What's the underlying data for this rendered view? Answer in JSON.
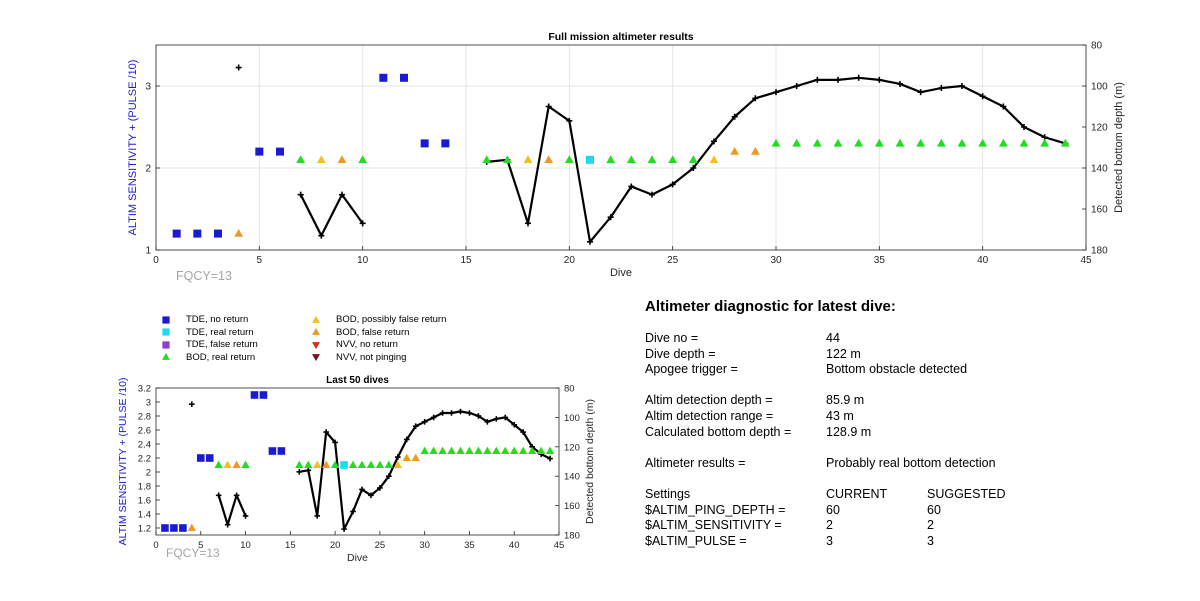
{
  "chart_data": [
    {
      "type": "scatter",
      "title": "Full mission altimeter results",
      "xlabel": "Dive",
      "ylabel": "ALTIM SENSITIVITY + (PULSE /10)",
      "y2label": "Detected bottom depth (m)",
      "annotation": "FQCY=13",
      "xlim": [
        0,
        45
      ],
      "ylim": [
        1,
        3.5
      ],
      "y2lim": [
        80,
        180
      ],
      "xticks": [
        "0",
        "5",
        "10",
        "15",
        "20",
        "25",
        "30",
        "35",
        "40",
        "45"
      ],
      "yticks": [
        "1",
        "2",
        "3"
      ],
      "y2ticks": [
        "80",
        "100",
        "120",
        "140",
        "160",
        "180"
      ],
      "grid": true,
      "depth_line_color": "#000000",
      "ylabel_color": "#1a1ad6"
    },
    {
      "type": "scatter",
      "title": "Last 50 dives",
      "xlabel": "Dive",
      "ylabel": "ALTIM SENSITIVITY + (PULSE /10)",
      "y2label": "Detected bottom depth (m)",
      "annotation": "FQCY=13",
      "xlim": [
        0,
        45
      ],
      "ylim": [
        1.1,
        3.2
      ],
      "y2lim": [
        80,
        180
      ],
      "xticks": [
        "0",
        "5",
        "10",
        "15",
        "20",
        "25",
        "30",
        "35",
        "40",
        "45"
      ],
      "yticks": [
        "1.2",
        "1.4",
        "1.6",
        "1.8",
        "2",
        "2.2",
        "2.4",
        "2.6",
        "2.8",
        "3",
        "3.2"
      ],
      "y2ticks": [
        "80",
        "100",
        "120",
        "140",
        "160",
        "180"
      ],
      "grid": false,
      "depth_line_color": "#000000",
      "ylabel_color": "#1a1ad6"
    }
  ],
  "markers": [
    {
      "dive": 1,
      "value": 1.2,
      "cat": "tde_none"
    },
    {
      "dive": 2,
      "value": 1.2,
      "cat": "tde_none"
    },
    {
      "dive": 3,
      "value": 1.2,
      "cat": "tde_none"
    },
    {
      "dive": 4,
      "value": 1.2,
      "cat": "bod_false"
    },
    {
      "dive": 5,
      "value": 2.2,
      "cat": "tde_none"
    },
    {
      "dive": 6,
      "value": 2.2,
      "cat": "tde_none"
    },
    {
      "dive": 7,
      "value": 2.1,
      "cat": "bod_real"
    },
    {
      "dive": 8,
      "value": 2.1,
      "cat": "bod_possibly"
    },
    {
      "dive": 9,
      "value": 2.1,
      "cat": "bod_false"
    },
    {
      "dive": 10,
      "value": 2.1,
      "cat": "bod_real"
    },
    {
      "dive": 11,
      "value": 3.1,
      "cat": "tde_none"
    },
    {
      "dive": 12,
      "value": 3.1,
      "cat": "tde_none"
    },
    {
      "dive": 13,
      "value": 2.3,
      "cat": "tde_none"
    },
    {
      "dive": 14,
      "value": 2.3,
      "cat": "tde_none"
    },
    {
      "dive": 16,
      "value": 2.1,
      "cat": "bod_real"
    },
    {
      "dive": 17,
      "value": 2.1,
      "cat": "bod_real"
    },
    {
      "dive": 18,
      "value": 2.1,
      "cat": "bod_possibly"
    },
    {
      "dive": 19,
      "value": 2.1,
      "cat": "bod_false"
    },
    {
      "dive": 20,
      "value": 2.1,
      "cat": "bod_real"
    },
    {
      "dive": 21,
      "value": 2.1,
      "cat": "tde_real"
    },
    {
      "dive": 22,
      "value": 2.1,
      "cat": "bod_real"
    },
    {
      "dive": 23,
      "value": 2.1,
      "cat": "bod_real"
    },
    {
      "dive": 24,
      "value": 2.1,
      "cat": "bod_real"
    },
    {
      "dive": 25,
      "value": 2.1,
      "cat": "bod_real"
    },
    {
      "dive": 26,
      "value": 2.1,
      "cat": "bod_real"
    },
    {
      "dive": 27,
      "value": 2.1,
      "cat": "bod_possibly"
    },
    {
      "dive": 28,
      "value": 2.2,
      "cat": "bod_false"
    },
    {
      "dive": 29,
      "value": 2.2,
      "cat": "bod_false"
    },
    {
      "dive": 30,
      "value": 2.3,
      "cat": "bod_real"
    },
    {
      "dive": 31,
      "value": 2.3,
      "cat": "bod_real"
    },
    {
      "dive": 32,
      "value": 2.3,
      "cat": "bod_real"
    },
    {
      "dive": 33,
      "value": 2.3,
      "cat": "bod_real"
    },
    {
      "dive": 34,
      "value": 2.3,
      "cat": "bod_real"
    },
    {
      "dive": 35,
      "value": 2.3,
      "cat": "bod_real"
    },
    {
      "dive": 36,
      "value": 2.3,
      "cat": "bod_real"
    },
    {
      "dive": 37,
      "value": 2.3,
      "cat": "bod_real"
    },
    {
      "dive": 38,
      "value": 2.3,
      "cat": "bod_real"
    },
    {
      "dive": 39,
      "value": 2.3,
      "cat": "bod_real"
    },
    {
      "dive": 40,
      "value": 2.3,
      "cat": "bod_real"
    },
    {
      "dive": 41,
      "value": 2.3,
      "cat": "bod_real"
    },
    {
      "dive": 42,
      "value": 2.3,
      "cat": "bod_real"
    },
    {
      "dive": 43,
      "value": 2.3,
      "cat": "bod_real"
    },
    {
      "dive": 44,
      "value": 2.3,
      "cat": "bod_real"
    }
  ],
  "depth_segments": [
    [
      [
        4,
        91
      ]
    ],
    [
      [
        7,
        153
      ],
      [
        8,
        173
      ],
      [
        9,
        153
      ],
      [
        10,
        167
      ]
    ],
    [
      [
        16,
        137
      ],
      [
        17,
        136
      ],
      [
        18,
        167
      ],
      [
        19,
        110
      ],
      [
        20,
        117
      ],
      [
        21,
        176
      ],
      [
        22,
        164
      ],
      [
        23,
        149
      ],
      [
        24,
        153
      ],
      [
        25,
        148
      ],
      [
        26,
        140
      ],
      [
        27,
        127
      ],
      [
        28,
        115
      ],
      [
        29,
        106
      ],
      [
        30,
        103
      ],
      [
        31,
        100
      ],
      [
        32,
        97
      ],
      [
        33,
        97
      ],
      [
        34,
        96
      ],
      [
        35,
        97
      ],
      [
        36,
        99
      ],
      [
        37,
        103
      ],
      [
        38,
        101
      ],
      [
        39,
        100
      ],
      [
        40,
        105
      ],
      [
        41,
        110
      ],
      [
        42,
        120
      ],
      [
        43,
        125
      ],
      [
        44,
        128
      ]
    ]
  ],
  "categories": {
    "tde_none": {
      "label": "TDE, no return",
      "shape": "square",
      "color": "#1a1ad6"
    },
    "tde_real": {
      "label": "TDE, real return",
      "shape": "square",
      "color": "#1fd9f2"
    },
    "tde_false": {
      "label": "TDE, false return",
      "shape": "square",
      "color": "#8e3ec9"
    },
    "bod_real": {
      "label": "BOD, real return",
      "shape": "triangle",
      "color": "#22dd22"
    },
    "bod_possibly": {
      "label": "BOD, possibly false return",
      "shape": "triangle",
      "color": "#f2c21a"
    },
    "bod_false": {
      "label": "BOD, false return",
      "shape": "triangle",
      "color": "#ee9a22"
    },
    "nvv_none": {
      "label": "NVV, no return",
      "shape": "tri-down",
      "color": "#dd2a1a"
    },
    "nvv_notping": {
      "label": "NVV, not pinging",
      "shape": "tri-down",
      "color": "#7a1414"
    }
  },
  "legend_order": [
    "tde_none",
    "bod_possibly",
    "tde_real",
    "bod_false",
    "tde_false",
    "nvv_none",
    "bod_real",
    "nvv_notping"
  ],
  "diagnostic": {
    "title": "Altimeter diagnostic for latest dive:",
    "dive_no_label": "Dive no =",
    "dive_no": "44",
    "dive_depth_label": "Dive depth =",
    "dive_depth": "122 m",
    "apogee_label": "Apogee trigger =",
    "apogee": "Bottom obstacle detected",
    "det_depth_label": "Altim detection depth =",
    "det_depth": "85.9 m",
    "det_range_label": "Altim detection range =",
    "det_range": "43 m",
    "calc_depth_label": "Calculated bottom depth =",
    "calc_depth": "128.9 m",
    "results_label": "Altimeter results =",
    "results": "Probably real bottom detection",
    "settings_label": "Settings",
    "current_label": "CURRENT",
    "suggested_label": "SUGGESTED",
    "ping_label": "$ALTIM_PING_DEPTH =",
    "ping_current": "60",
    "ping_suggested": "60",
    "sens_label": "$ALTIM_SENSITIVITY =",
    "sens_current": "2",
    "sens_suggested": "2",
    "pulse_label": "$ALTIM_PULSE =",
    "pulse_current": "3",
    "pulse_suggested": "3"
  }
}
